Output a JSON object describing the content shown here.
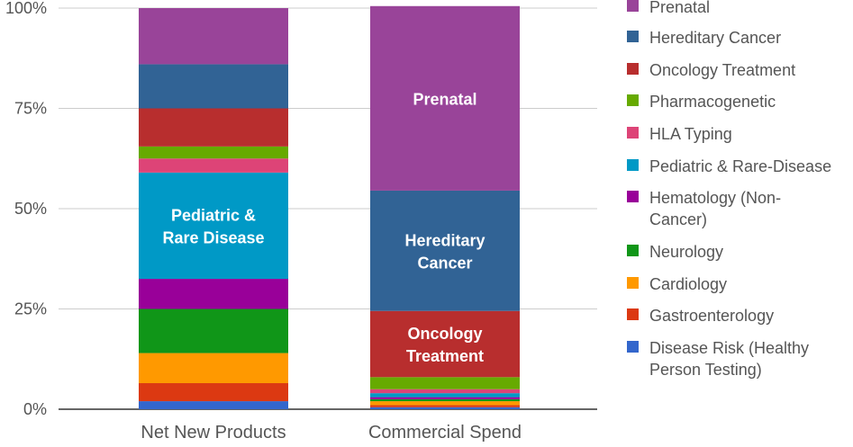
{
  "chart_data": {
    "type": "bar",
    "stacked": true,
    "categories": [
      "Net New Products",
      "Commercial Spend"
    ],
    "y_ticks": [
      "0%",
      "25%",
      "50%",
      "75%",
      "100%"
    ],
    "ylim": [
      0,
      100
    ],
    "grid": true,
    "legend_position": "right",
    "series": [
      {
        "name": "Disease Risk (Healthy Person Testing)",
        "color": "#3366cc",
        "values": [
          2.0,
          0.5
        ]
      },
      {
        "name": "Gastroenterology",
        "color": "#dc3912",
        "values": [
          4.5,
          0.5
        ]
      },
      {
        "name": "Cardiology",
        "color": "#ff9900",
        "values": [
          7.5,
          1.0
        ]
      },
      {
        "name": "Neurology",
        "color": "#109618",
        "values": [
          11.0,
          0.5
        ]
      },
      {
        "name": "Hematology (Non-Cancer)",
        "color": "#990099",
        "values": [
          7.5,
          0.5
        ]
      },
      {
        "name": "Pediatric & Rare-Disease",
        "color": "#0099c6",
        "values": [
          26.5,
          1.0
        ]
      },
      {
        "name": "HLA Typing",
        "color": "#dd4477",
        "values": [
          3.5,
          1.0
        ]
      },
      {
        "name": "Pharmacogenetic",
        "color": "#66aa00",
        "values": [
          3.0,
          3.0
        ]
      },
      {
        "name": "Oncology Treatment",
        "color": "#b82e2e",
        "values": [
          9.5,
          16.5
        ]
      },
      {
        "name": "Hereditary Cancer",
        "color": "#316395",
        "values": [
          11.0,
          30.0
        ]
      },
      {
        "name": "Prenatal",
        "color": "#994499",
        "values": [
          14.0,
          46.0
        ]
      }
    ],
    "bar_labels": [
      {
        "category": 0,
        "series": 5,
        "lines": [
          "Pediatric &",
          "Rare Disease"
        ]
      },
      {
        "category": 1,
        "series": 10,
        "lines": [
          "Prenatal"
        ]
      },
      {
        "category": 1,
        "series": 9,
        "lines": [
          "Hereditary",
          "Cancer"
        ]
      },
      {
        "category": 1,
        "series": 8,
        "lines": [
          "Oncology",
          "Treatment"
        ]
      }
    ]
  },
  "legend": {
    "items": [
      {
        "lines": [
          "Prenatal"
        ],
        "color": "#994499"
      },
      {
        "lines": [
          "Hereditary Cancer"
        ],
        "color": "#316395"
      },
      {
        "lines": [
          "Oncology Treatment"
        ],
        "color": "#b82e2e"
      },
      {
        "lines": [
          "Pharmacogenetic"
        ],
        "color": "#66aa00"
      },
      {
        "lines": [
          "HLA Typing"
        ],
        "color": "#dd4477"
      },
      {
        "lines": [
          "Pediatric & Rare-Disease"
        ],
        "color": "#0099c6"
      },
      {
        "lines": [
          "Hematology (Non-",
          "Cancer)"
        ],
        "color": "#990099"
      },
      {
        "lines": [
          "Neurology"
        ],
        "color": "#109618"
      },
      {
        "lines": [
          "Cardiology"
        ],
        "color": "#ff9900"
      },
      {
        "lines": [
          "Gastroenterology"
        ],
        "color": "#dc3912"
      },
      {
        "lines": [
          "Disease Risk (Healthy",
          "Person Testing)"
        ],
        "color": "#3366cc"
      }
    ]
  }
}
